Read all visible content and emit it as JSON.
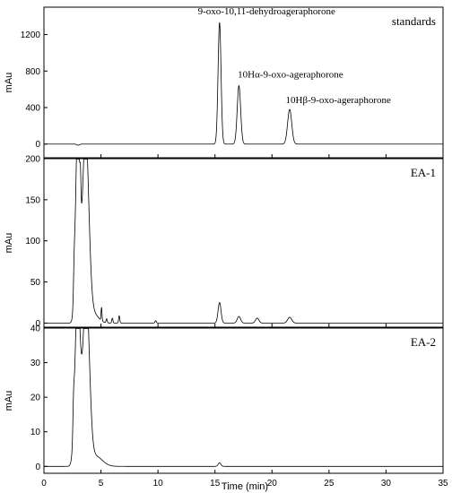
{
  "chart_data": [
    {
      "type": "line",
      "panel_label": "standards",
      "ylabel": "mAu",
      "xlim": [
        0,
        35
      ],
      "ylim": [
        -150,
        1500
      ],
      "yticks": [
        0,
        400,
        800,
        1200
      ],
      "peaks": [
        {
          "x": 3.0,
          "height": -12,
          "width": 0.12
        },
        {
          "x": 15.4,
          "height": 1330,
          "width": 0.13
        },
        {
          "x": 17.1,
          "height": 640,
          "width": 0.15
        },
        {
          "x": 21.55,
          "height": 380,
          "width": 0.18
        }
      ],
      "annotations": [
        {
          "text": "9-oxo-10,11-dehydroageraphorone",
          "x": 13.5,
          "y": 1420
        },
        {
          "text": "10Hα-9-oxo-ageraphorone",
          "x": 17.0,
          "y": 730
        },
        {
          "text": "10Hβ-9-oxo-ageraphorone",
          "x": 21.2,
          "y": 450
        }
      ]
    },
    {
      "type": "line",
      "panel_label": "EA-1",
      "ylabel": "mAu",
      "xlim": [
        0,
        35
      ],
      "ylim": [
        -5,
        200
      ],
      "yticks": [
        0,
        50,
        100,
        150,
        200
      ],
      "peaks": [
        {
          "x": 2.65,
          "height": 30,
          "width": 0.06
        },
        {
          "x": 2.95,
          "height": 230,
          "width": 0.18
        },
        {
          "x": 3.2,
          "height": 40,
          "width": 0.05
        },
        {
          "x": 3.65,
          "height": 230,
          "width": 0.28
        },
        {
          "x": 4.3,
          "height": 12,
          "width": 0.45
        },
        {
          "x": 5.05,
          "height": 16,
          "width": 0.04
        },
        {
          "x": 5.5,
          "height": 5,
          "width": 0.05
        },
        {
          "x": 6.0,
          "height": 6,
          "width": 0.05
        },
        {
          "x": 6.6,
          "height": 9,
          "width": 0.05
        },
        {
          "x": 9.8,
          "height": 3,
          "width": 0.06
        },
        {
          "x": 15.4,
          "height": 25,
          "width": 0.13
        },
        {
          "x": 17.1,
          "height": 8,
          "width": 0.15
        },
        {
          "x": 18.7,
          "height": 6,
          "width": 0.15
        },
        {
          "x": 21.55,
          "height": 7,
          "width": 0.18
        }
      ]
    },
    {
      "type": "line",
      "panel_label": "EA-2",
      "ylabel": "mAu",
      "xlim": [
        0,
        35
      ],
      "ylim": [
        -2,
        40
      ],
      "yticks": [
        0,
        10,
        20,
        30,
        40
      ],
      "peaks": [
        {
          "x": 2.6,
          "height": 8,
          "width": 0.06
        },
        {
          "x": 2.95,
          "height": 50,
          "width": 0.22
        },
        {
          "x": 3.7,
          "height": 50,
          "width": 0.28
        },
        {
          "x": 4.5,
          "height": 3,
          "width": 0.6
        },
        {
          "x": 15.4,
          "height": 1,
          "width": 0.12
        }
      ]
    }
  ],
  "x_axis": {
    "label": "Time (min)",
    "ticks": [
      0,
      5,
      10,
      15,
      20,
      25,
      30,
      35
    ]
  }
}
